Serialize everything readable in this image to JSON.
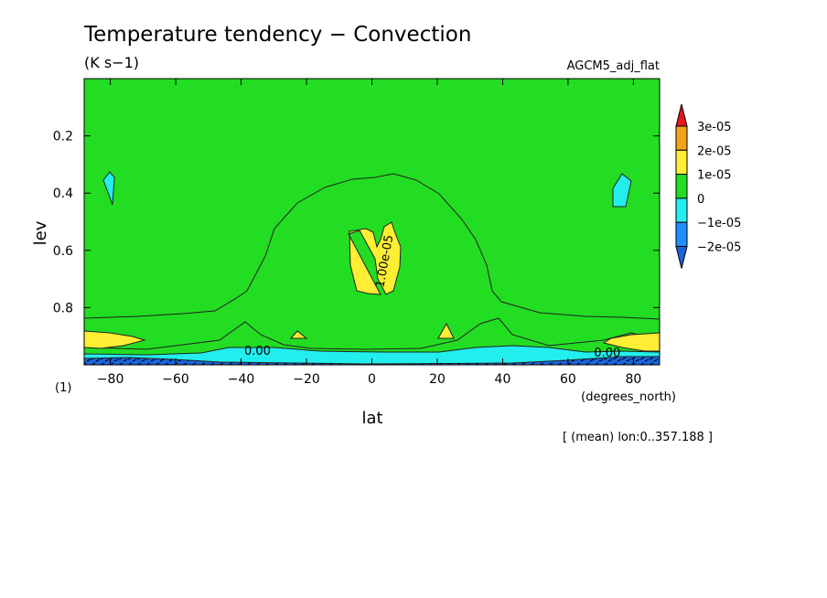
{
  "chart_data": {
    "type": "heatmap",
    "title": "Temperature tendency − Convection",
    "units": "(K s−1)",
    "experiment": "AGCM5_adj_flat",
    "xlabel": "lat",
    "xunits": "(degrees_north)",
    "ylabel": "lev",
    "yunits": "(1)",
    "note": "[ (mean) lon:0..357.188 ]",
    "xlim": [
      -88,
      88
    ],
    "ylim": [
      1.0,
      0.0
    ],
    "x_ticks": [
      -80,
      -60,
      -40,
      -20,
      0,
      20,
      40,
      60,
      80
    ],
    "y_ticks": [
      0.2,
      0.4,
      0.6,
      0.8
    ],
    "contour_labels": [
      {
        "text": "0.00",
        "lat": -35,
        "lev": 0.965
      },
      {
        "text": "0.00",
        "lat": 72,
        "lev": 0.972
      },
      {
        "text": "1.00e-05",
        "lat": 5,
        "lev": 0.64
      }
    ],
    "colorbar": {
      "levels": [
        "3e-05",
        "2e-05",
        "1e-05",
        "0",
        "−1e-05",
        "−2e-05"
      ],
      "colors": [
        "#e8151a",
        "#f7a21b",
        "#ffee33",
        "#22dd22",
        "#22eeee",
        "#1e90ff",
        "#1a64dd"
      ]
    }
  }
}
